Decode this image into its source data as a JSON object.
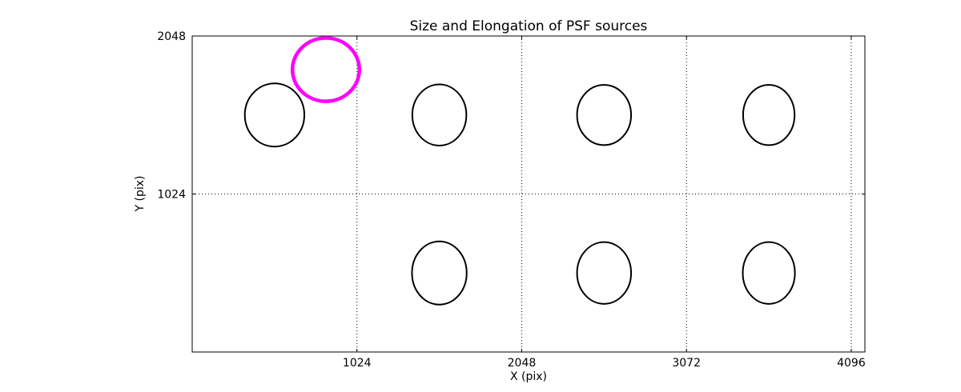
{
  "chart_data": {
    "type": "scatter",
    "title": "Size and Elongation of PSF sources",
    "xlabel": "X (pix)",
    "ylabel": "Y (pix)",
    "xlim": [
      0,
      4181
    ],
    "ylim": [
      0,
      2048
    ],
    "xticks": [
      1024,
      2048,
      3072,
      4096
    ],
    "yticks": [
      1024,
      2048
    ],
    "grid": {
      "style": "dotted",
      "color": "#000000",
      "x_at": [
        1024,
        2048,
        3072,
        4096
      ],
      "y_at": [
        1024
      ]
    },
    "axis_color": "#000000",
    "psf_color": "#000000",
    "highlight_color": "#ff00ff",
    "ellipses": [
      {
        "x": 512,
        "y": 1536,
        "rx": 185,
        "ry": 205,
        "color": "#000000",
        "lw": 2,
        "role": "psf"
      },
      {
        "x": 1536,
        "y": 1536,
        "rx": 168,
        "ry": 198,
        "color": "#000000",
        "lw": 2,
        "role": "psf"
      },
      {
        "x": 2560,
        "y": 1536,
        "rx": 168,
        "ry": 195,
        "color": "#000000",
        "lw": 2,
        "role": "psf"
      },
      {
        "x": 3584,
        "y": 1536,
        "rx": 160,
        "ry": 195,
        "color": "#000000",
        "lw": 2,
        "role": "psf"
      },
      {
        "x": 1536,
        "y": 512,
        "rx": 170,
        "ry": 205,
        "color": "#000000",
        "lw": 2,
        "role": "psf"
      },
      {
        "x": 2560,
        "y": 512,
        "rx": 168,
        "ry": 200,
        "color": "#000000",
        "lw": 2,
        "role": "psf"
      },
      {
        "x": 3584,
        "y": 512,
        "rx": 162,
        "ry": 200,
        "color": "#000000",
        "lw": 2,
        "role": "psf"
      },
      {
        "x": 831,
        "y": 1830,
        "rx": 208,
        "ry": 205,
        "color": "#ff00ff",
        "lw": 4.5,
        "role": "highlighted-psf"
      }
    ]
  }
}
